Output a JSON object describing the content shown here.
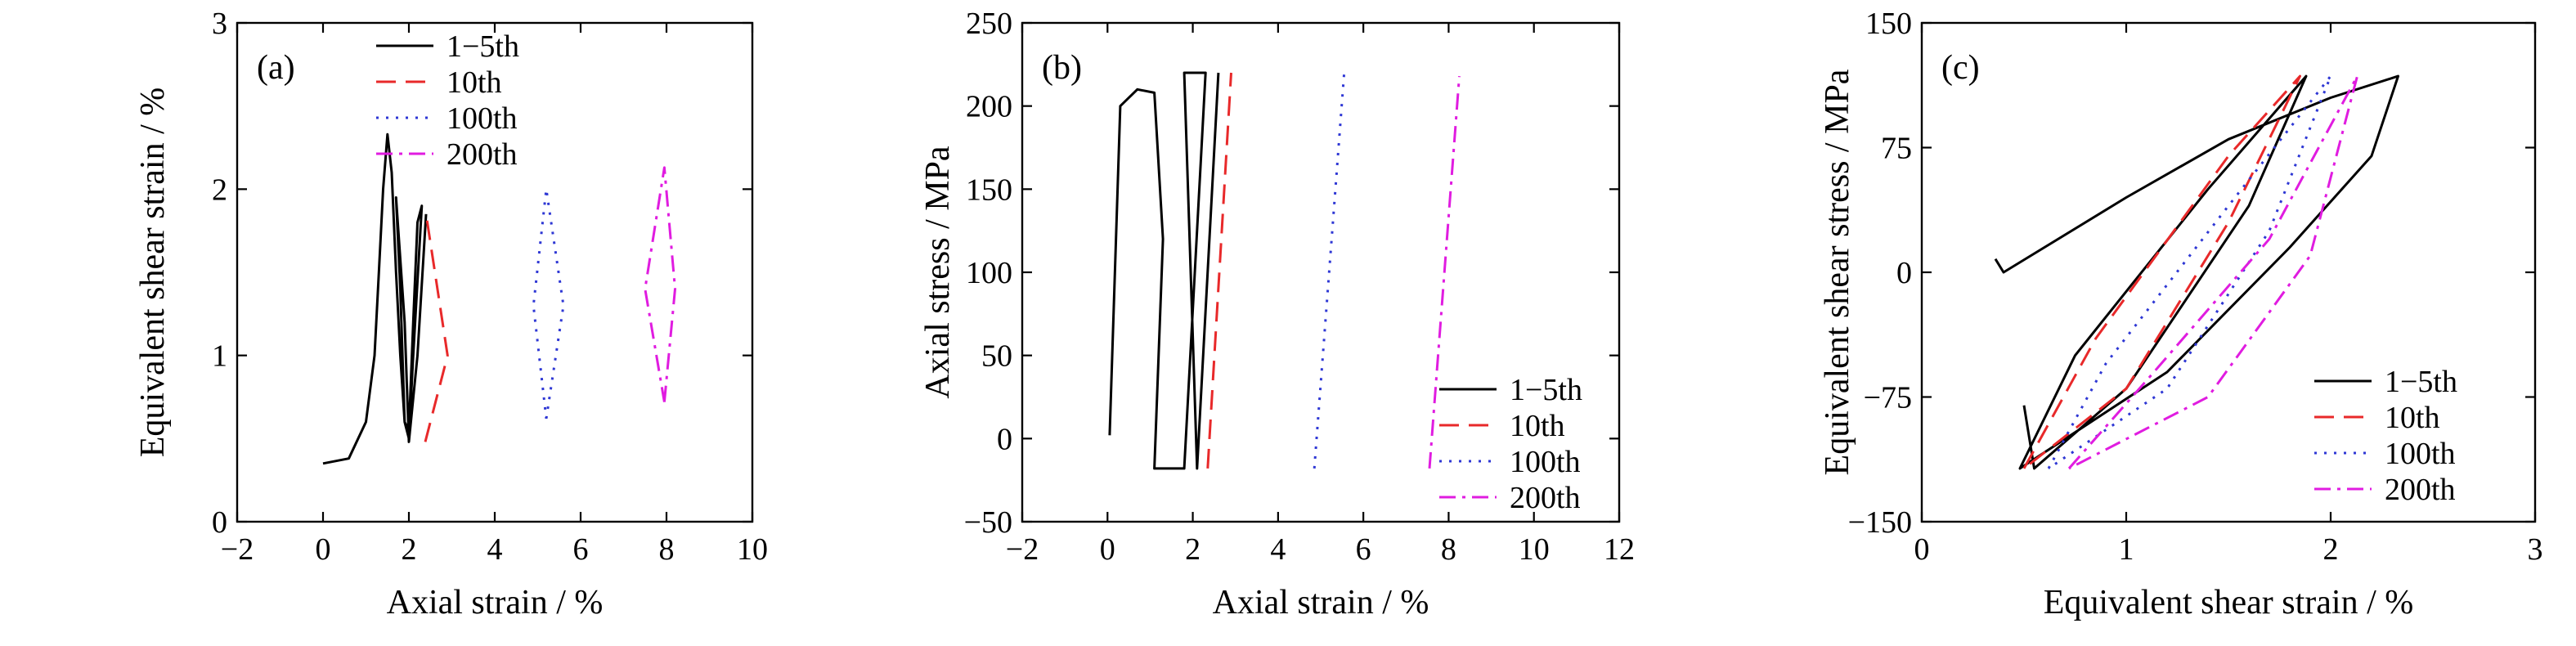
{
  "chart_data": [
    {
      "type": "line",
      "panel_label": "(a)",
      "xlabel": "Axial strain / %",
      "ylabel": "Equivalent shear strain / %",
      "xlim": [
        -2,
        10
      ],
      "ylim": [
        0,
        3
      ],
      "xticks": [
        -2,
        0,
        2,
        4,
        6,
        8,
        10
      ],
      "yticks": [
        0,
        1,
        2,
        3
      ],
      "legend_position": "top-center",
      "series": [
        {
          "name": "1−5th",
          "color": "#000000",
          "dash": "solid",
          "x": [
            0.0,
            0.6,
            1.0,
            1.2,
            1.3,
            1.4,
            1.5,
            1.6,
            1.7,
            1.8,
            1.9,
            2.0,
            2.1,
            2.2,
            2.3,
            2.1,
            2.0,
            1.9,
            1.8,
            1.7,
            1.9,
            2.0,
            2.2,
            2.4
          ],
          "y": [
            0.35,
            0.38,
            0.6,
            1.0,
            1.5,
            2.0,
            2.33,
            2.1,
            1.5,
            1.0,
            0.6,
            0.55,
            1.2,
            1.8,
            1.9,
            1.0,
            0.5,
            0.6,
            1.4,
            1.95,
            1.2,
            0.48,
            1.0,
            1.85
          ]
        },
        {
          "name": "10th",
          "color": "#e8292a",
          "dash": "long-dash",
          "x": [
            2.38,
            2.9,
            2.4
          ],
          "y": [
            0.48,
            1.0,
            1.85
          ]
        },
        {
          "name": "100th",
          "color": "#2e37d4",
          "dash": "dotted",
          "x": [
            5.2,
            5.6,
            5.2,
            4.9,
            5.2
          ],
          "y": [
            0.62,
            1.3,
            2.0,
            1.3,
            0.62
          ]
        },
        {
          "name": "200th",
          "color": "#e01ce0",
          "dash": "dash-dot",
          "x": [
            7.95,
            8.2,
            7.95,
            7.5,
            7.95
          ],
          "y": [
            0.72,
            1.4,
            2.13,
            1.4,
            0.72
          ]
        }
      ]
    },
    {
      "type": "line",
      "panel_label": "(b)",
      "xlabel": "Axial strain / %",
      "ylabel": "Axial stress / MPa",
      "xlim": [
        -2,
        12
      ],
      "ylim": [
        -50,
        250
      ],
      "xticks": [
        -2,
        0,
        2,
        4,
        6,
        8,
        10,
        12
      ],
      "yticks": [
        -50,
        0,
        50,
        100,
        150,
        200,
        250
      ],
      "legend_position": "bottom-right",
      "series": [
        {
          "name": "1−5th",
          "color": "#000000",
          "dash": "solid",
          "x": [
            0.05,
            0.3,
            0.7,
            1.1,
            1.3,
            1.1,
            1.2,
            1.8,
            2.3,
            1.8,
            2.1,
            2.6
          ],
          "y": [
            2,
            200,
            210,
            208,
            120,
            -18,
            -18,
            -18,
            220,
            220,
            -18,
            220
          ]
        },
        {
          "name": "10th",
          "color": "#e8292a",
          "dash": "long-dash",
          "x": [
            2.35,
            2.9
          ],
          "y": [
            -18,
            220
          ]
        },
        {
          "name": "100th",
          "color": "#2e37d4",
          "dash": "dotted",
          "x": [
            4.85,
            5.55
          ],
          "y": [
            -18,
            220
          ]
        },
        {
          "name": "200th",
          "color": "#e01ce0",
          "dash": "dash-dot",
          "x": [
            7.55,
            8.25
          ],
          "y": [
            -18,
            218
          ]
        }
      ]
    },
    {
      "type": "line",
      "panel_label": "(c)",
      "xlabel": "Equivalent shear strain / %",
      "ylabel": "Equivalent shear stress / MPa",
      "xlim": [
        0,
        3
      ],
      "ylim": [
        -150,
        150
      ],
      "xticks": [
        0,
        1,
        2,
        3
      ],
      "yticks": [
        -150,
        -75,
        0,
        75,
        150
      ],
      "legend_position": "bottom-right",
      "series": [
        {
          "name": "1−5th",
          "color": "#000000",
          "dash": "solid",
          "x": [
            0.36,
            0.4,
            1.0,
            1.5,
            2.0,
            2.33,
            2.2,
            1.8,
            1.2,
            0.48,
            0.75,
            1.4,
            1.88,
            1.6,
            1.0,
            0.55,
            0.5
          ],
          "y": [
            8,
            0,
            45,
            80,
            105,
            118,
            70,
            15,
            -60,
            -118,
            -50,
            50,
            118,
            40,
            -70,
            -118,
            -80
          ]
        },
        {
          "name": "10th",
          "color": "#e8292a",
          "dash": "long-dash",
          "x": [
            0.5,
            0.85,
            1.5,
            1.85,
            1.5,
            1.0,
            0.5
          ],
          "y": [
            -118,
            -40,
            70,
            118,
            30,
            -70,
            -118
          ]
        },
        {
          "name": "100th",
          "color": "#2e37d4",
          "dash": "dotted",
          "x": [
            0.62,
            0.9,
            1.5,
            2.0,
            1.7,
            1.2,
            0.62
          ],
          "y": [
            -118,
            -55,
            40,
            118,
            25,
            -70,
            -118
          ]
        },
        {
          "name": "200th",
          "color": "#e01ce0",
          "dash": "dash-dot",
          "x": [
            0.72,
            1.1,
            1.7,
            2.13,
            1.9,
            1.4,
            0.72
          ],
          "y": [
            -118,
            -65,
            20,
            118,
            10,
            -75,
            -118
          ]
        }
      ]
    }
  ]
}
